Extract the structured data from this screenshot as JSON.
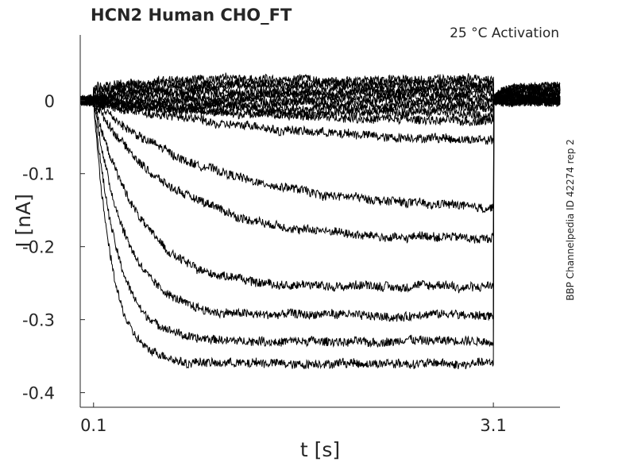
{
  "chart_data": {
    "type": "line",
    "title": "HCN2  Human  CHO_FT",
    "subtitle": "25 °C  Activation",
    "side_label": "BBP Channelpedia ID 42274 rep 2",
    "xlabel": "t [s]",
    "ylabel": "I [nA]",
    "xlim": [
      0.0,
      3.6
    ],
    "ylim": [
      -0.42,
      0.09
    ],
    "x_ticks": [
      0.1,
      3.1
    ],
    "x_tick_labels": [
      "0.1",
      "3.1"
    ],
    "y_ticks": [
      0,
      -0.1,
      -0.2,
      -0.3,
      -0.4
    ],
    "y_tick_labels": [
      "0",
      "-0.1",
      "-0.2",
      "-0.3",
      "-0.4"
    ],
    "grid": false,
    "legend": "none",
    "line_color": "#000000",
    "protocol": {
      "step_start_s": 0.1,
      "step_end_s": 3.1
    },
    "series": [
      {
        "steady_nA": 0.03,
        "tau_s": 0.5,
        "tail_nA": 0.02
      },
      {
        "steady_nA": 0.025,
        "tau_s": 0.5,
        "tail_nA": 0.018
      },
      {
        "steady_nA": 0.02,
        "tau_s": 0.5,
        "tail_nA": 0.016
      },
      {
        "steady_nA": 0.015,
        "tau_s": 0.5,
        "tail_nA": 0.014
      },
      {
        "steady_nA": 0.01,
        "tau_s": 0.5,
        "tail_nA": 0.012
      },
      {
        "steady_nA": 0.005,
        "tau_s": 0.5,
        "tail_nA": 0.01
      },
      {
        "steady_nA": 0.0,
        "tau_s": 0.5,
        "tail_nA": 0.008
      },
      {
        "steady_nA": -0.005,
        "tau_s": 0.6,
        "tail_nA": 0.006
      },
      {
        "steady_nA": -0.01,
        "tau_s": 0.8,
        "tail_nA": 0.004
      },
      {
        "steady_nA": -0.02,
        "tau_s": 1.0,
        "tail_nA": 0.002
      },
      {
        "steady_nA": -0.03,
        "tau_s": 1.2,
        "tail_nA": 0.0
      },
      {
        "steady_nA": -0.06,
        "tau_s": 1.3,
        "tail_nA": 0.0
      },
      {
        "steady_nA": -0.15,
        "tau_s": 0.9,
        "tail_nA": 0.0
      },
      {
        "steady_nA": -0.19,
        "tau_s": 0.6,
        "tail_nA": 0.0
      },
      {
        "steady_nA": -0.255,
        "tau_s": 0.35,
        "tail_nA": 0.0
      },
      {
        "steady_nA": -0.295,
        "tau_s": 0.25,
        "tail_nA": 0.0
      },
      {
        "steady_nA": -0.33,
        "tau_s": 0.18,
        "tail_nA": 0.0
      },
      {
        "steady_nA": -0.36,
        "tau_s": 0.14,
        "tail_nA": 0.0
      }
    ]
  }
}
